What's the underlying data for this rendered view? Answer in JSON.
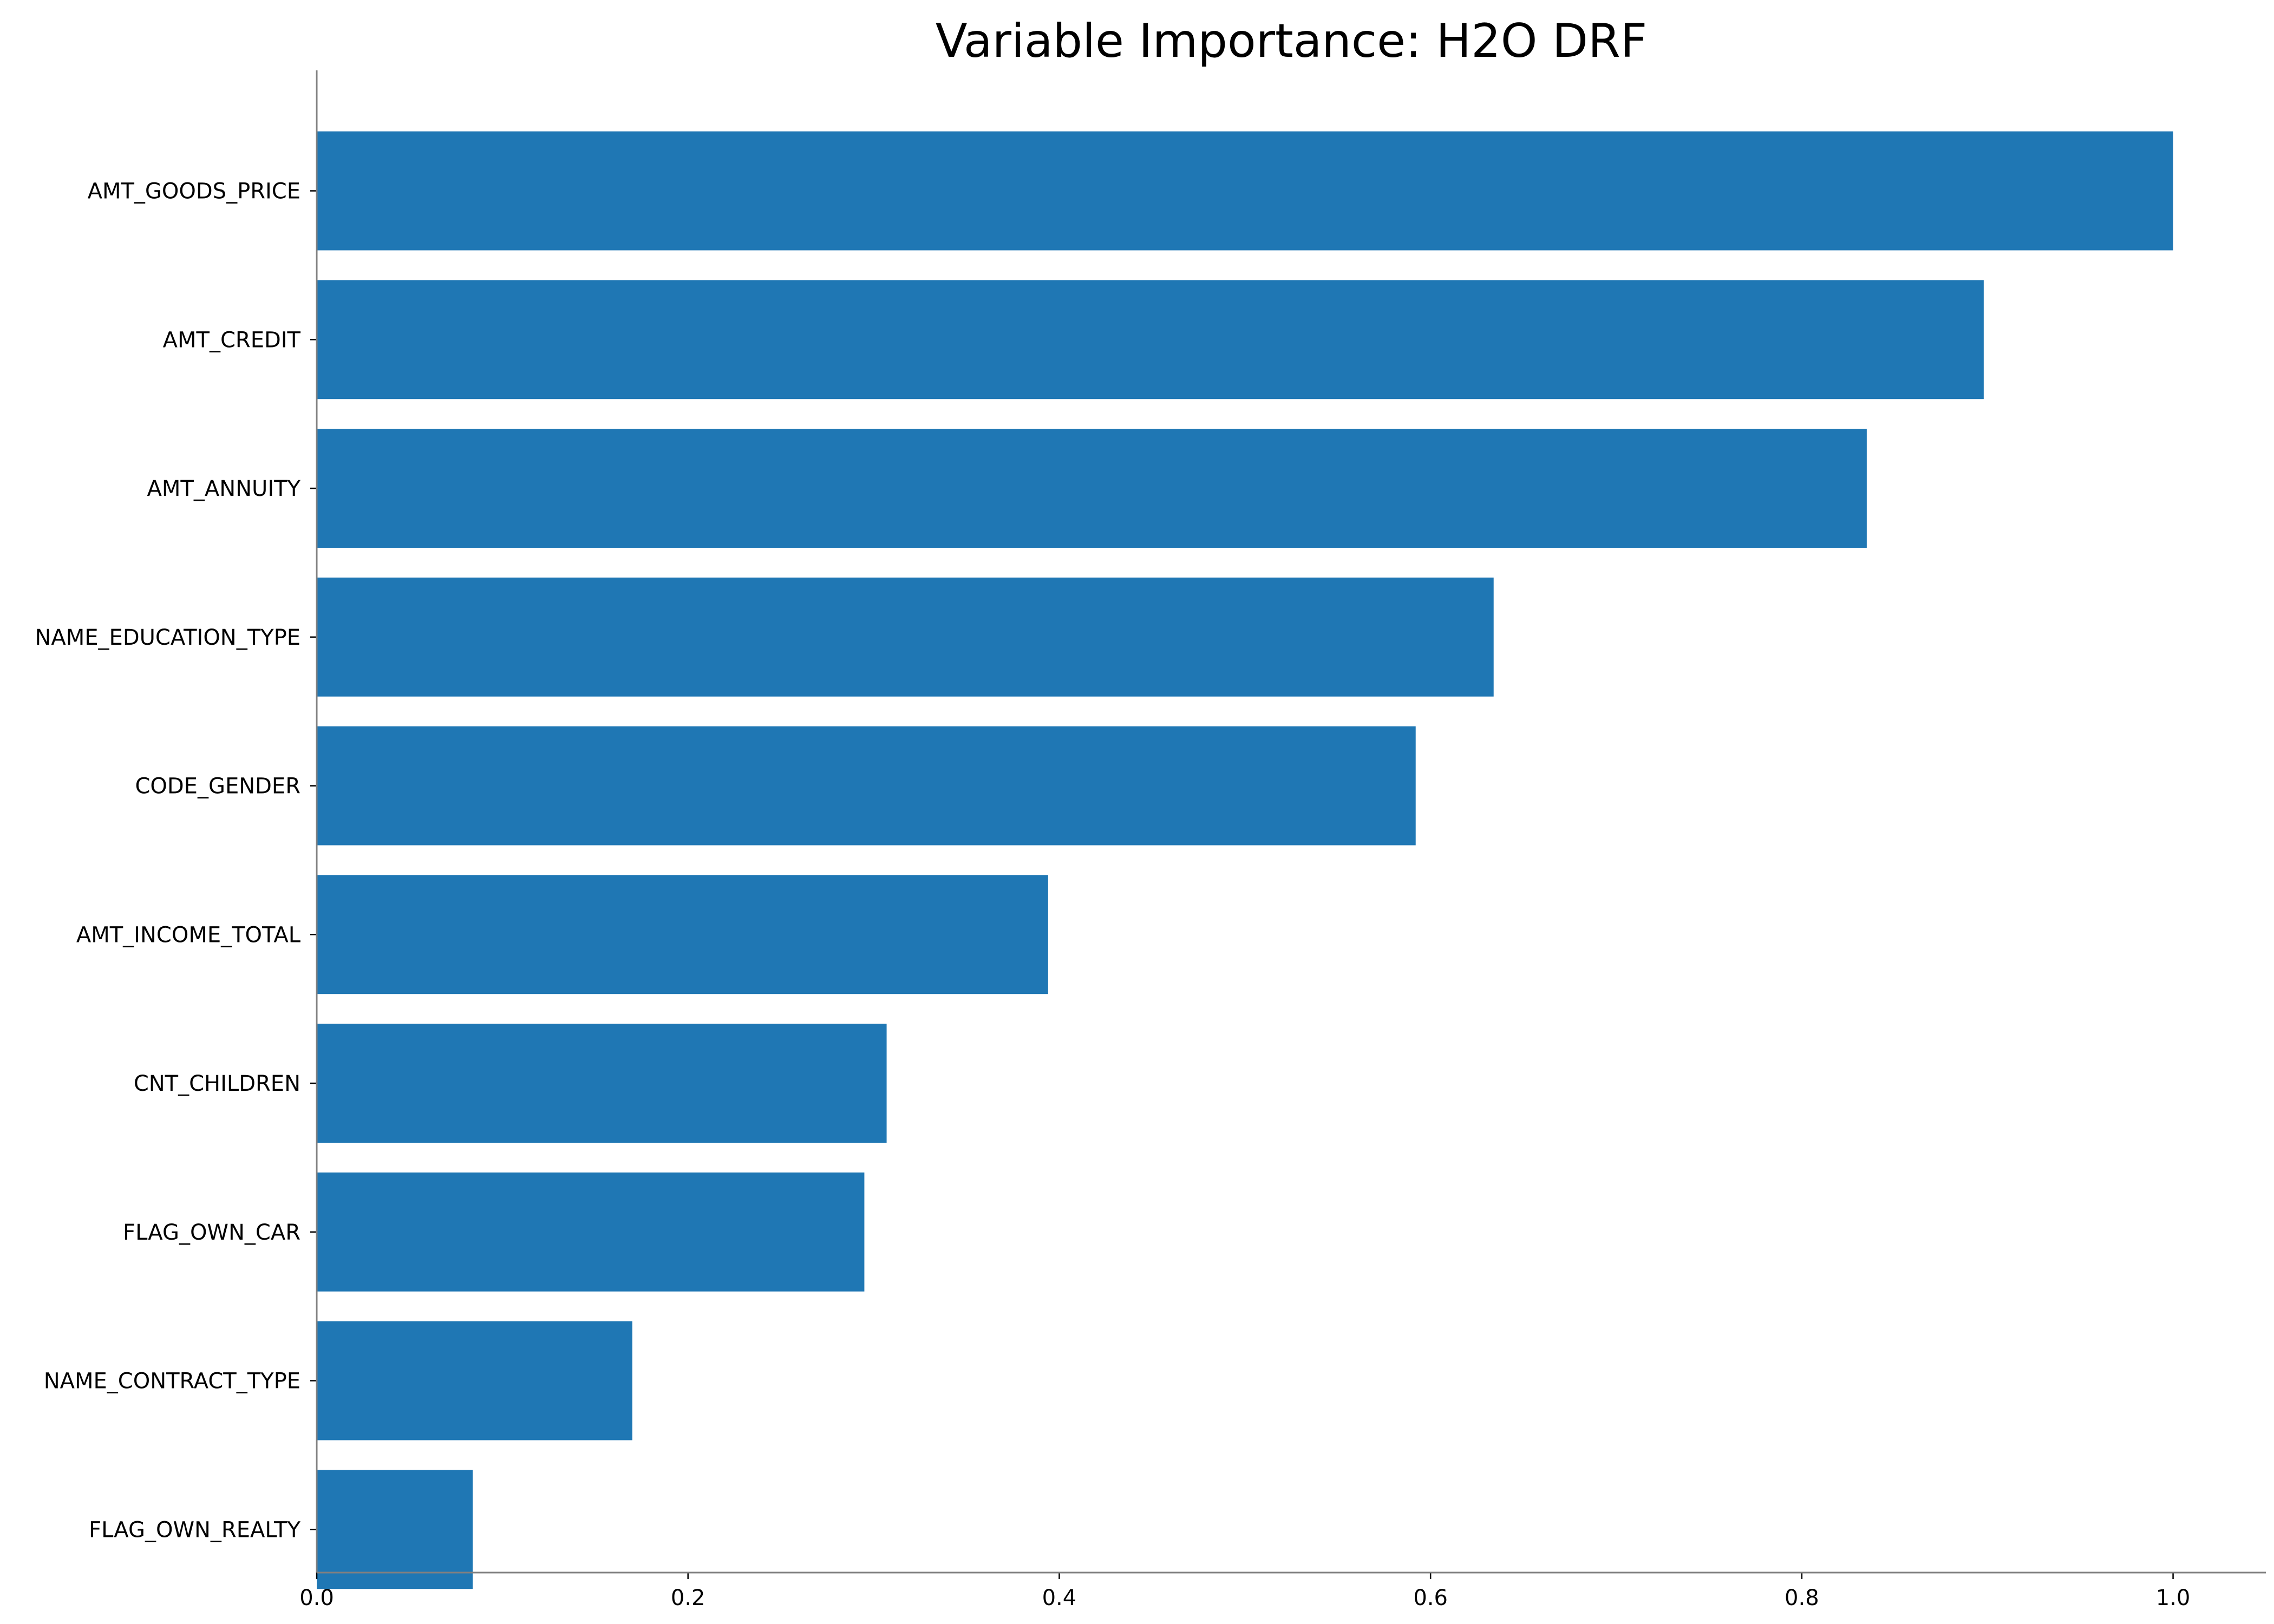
{
  "chart_data": {
    "type": "bar",
    "orientation": "horizontal",
    "title": "Variable Importance: H2O DRF",
    "xlabel": "",
    "ylabel": "",
    "categories": [
      "AMT_GOODS_PRICE",
      "AMT_CREDIT",
      "AMT_ANNUITY",
      "NAME_EDUCATION_TYPE",
      "CODE_GENDER",
      "AMT_INCOME_TOTAL",
      "CNT_CHILDREN",
      "FLAG_OWN_CAR",
      "NAME_CONTRACT_TYPE",
      "FLAG_OWN_REALTY"
    ],
    "values": [
      1.0,
      0.898,
      0.835,
      0.634,
      0.592,
      0.394,
      0.307,
      0.295,
      0.17,
      0.084
    ],
    "xlim": [
      0,
      1.05
    ],
    "xticks": [
      "0.0",
      "0.2",
      "0.4",
      "0.6",
      "0.8",
      "1.0"
    ],
    "grid": false,
    "legend": "none",
    "bar_color": "#1f77b4"
  }
}
